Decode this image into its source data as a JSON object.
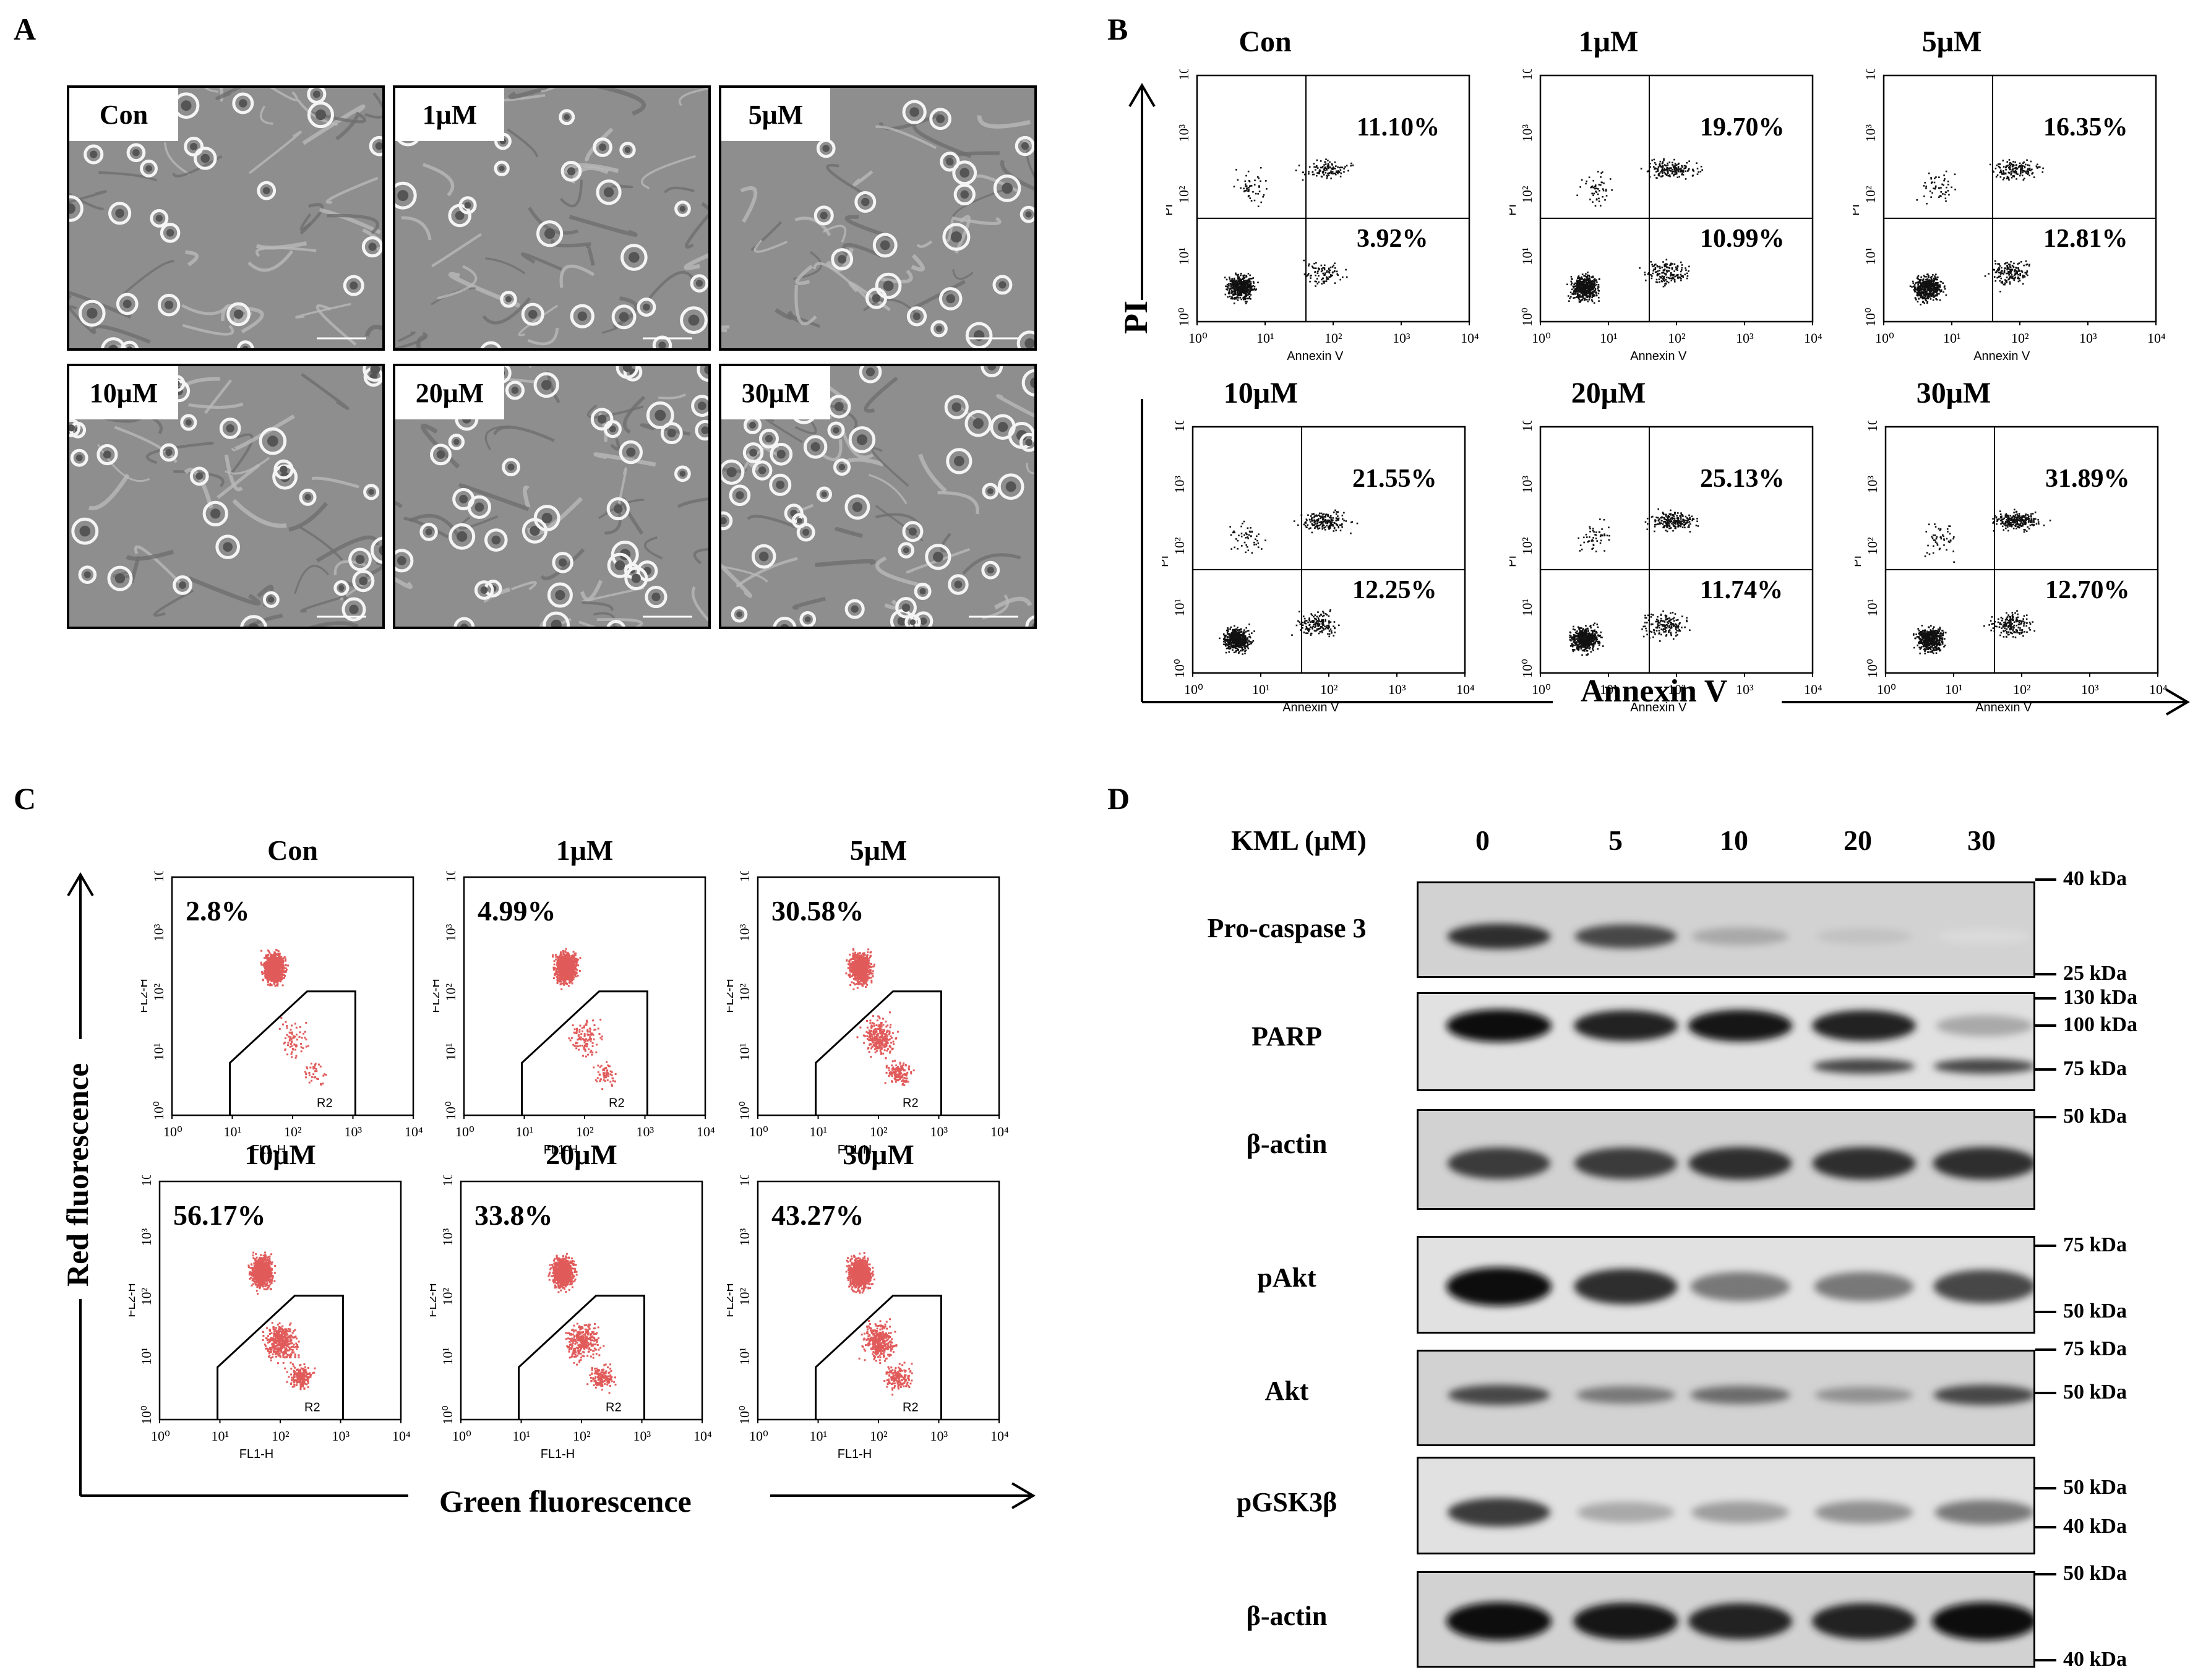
{
  "panel_labels": {
    "a": "A",
    "b": "B",
    "c": "C",
    "d": "D"
  },
  "panel_a": {
    "images": [
      {
        "label": "Con"
      },
      {
        "label": "1μM"
      },
      {
        "label": "5μM"
      },
      {
        "label": "10μM"
      },
      {
        "label": "20μM"
      },
      {
        "label": "30μM"
      }
    ]
  },
  "panel_b": {
    "y_axis": "PI",
    "x_axis": "Annexin V",
    "tick_labels": [
      "10⁰",
      "10¹",
      "10²",
      "10³",
      "10⁴"
    ],
    "small_x": "Annexin V",
    "small_y": "PI",
    "plots": [
      {
        "title": "Con",
        "upper_right": "11.10%",
        "lower_right": "3.92%"
      },
      {
        "title": "1μM",
        "upper_right": "19.70%",
        "lower_right": "10.99%"
      },
      {
        "title": "5μM",
        "upper_right": "16.35%",
        "lower_right": "12.81%"
      },
      {
        "title": "10μM",
        "upper_right": "21.55%",
        "lower_right": "12.25%"
      },
      {
        "title": "20μM",
        "upper_right": "25.13%",
        "lower_right": "11.74%"
      },
      {
        "title": "30μM",
        "upper_right": "31.89%",
        "lower_right": "12.70%"
      }
    ]
  },
  "panel_c": {
    "y_axis": "Red fluorescence",
    "x_axis": "Green fluorescence",
    "tick_labels": [
      "10⁰",
      "10¹",
      "10²",
      "10³",
      "10⁴"
    ],
    "small_x": "FL1-H",
    "small_y": "FL2-H",
    "gate": "R2",
    "plots": [
      {
        "title": "Con",
        "value": "2.8%"
      },
      {
        "title": "1μM",
        "value": "4.99%"
      },
      {
        "title": "5μM",
        "value": "30.58%"
      },
      {
        "title": "10μM",
        "value": "56.17%"
      },
      {
        "title": "20μM",
        "value": "33.8%"
      },
      {
        "title": "30μM",
        "value": "43.27%"
      }
    ]
  },
  "panel_d": {
    "header": "KML (μM)",
    "lanes": [
      "0",
      "5",
      "10",
      "20",
      "30"
    ],
    "rows": [
      {
        "label": "Pro-caspase 3",
        "markers": [
          "40 kDa",
          "25 kDa"
        ]
      },
      {
        "label": "PARP",
        "markers": [
          "130 kDa",
          "100 kDa",
          "75 kDa"
        ]
      },
      {
        "label": "β-actin",
        "markers": [
          "50 kDa"
        ]
      },
      {
        "label": "pAkt",
        "markers": [
          "75 kDa",
          "50 kDa"
        ]
      },
      {
        "label": "Akt",
        "markers": [
          "75 kDa",
          "50 kDa"
        ]
      },
      {
        "label": "pGSK3β",
        "markers": [
          "50 kDa",
          "40 kDa"
        ]
      },
      {
        "label": "β-actin",
        "markers": [
          "50 kDa",
          "40 kDa"
        ]
      }
    ],
    "band_intensity": {
      "pro_caspase_3": [
        0.85,
        0.75,
        0.35,
        0.25,
        0.15
      ],
      "parp_full": [
        1.0,
        0.9,
        0.95,
        0.9,
        0.35
      ],
      "parp_cleaved": [
        0.0,
        0.0,
        0.0,
        0.75,
        0.75
      ],
      "beta_actin_1": [
        0.8,
        0.8,
        0.85,
        0.85,
        0.85
      ],
      "pakt": [
        1.0,
        0.85,
        0.55,
        0.55,
        0.75
      ],
      "akt": [
        0.75,
        0.55,
        0.6,
        0.45,
        0.75
      ],
      "pgsk3b": [
        0.8,
        0.35,
        0.4,
        0.45,
        0.55
      ],
      "beta_actin_2": [
        1.0,
        0.95,
        0.9,
        0.9,
        1.0
      ]
    }
  }
}
